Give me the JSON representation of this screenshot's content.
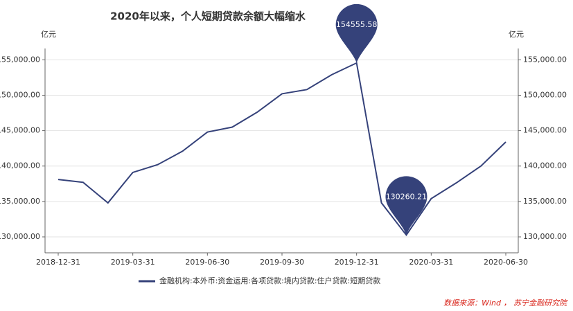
{
  "chart_data": {
    "type": "line",
    "title": "2020年以来，个人短期贷款余额大幅缩水",
    "y_label": "亿元",
    "y2_label": "亿元",
    "source": "数据来源：Wind ， 苏宁金融研究院",
    "categories": [
      "2018-12-31",
      null,
      null,
      "2019-03-31",
      null,
      null,
      "2019-06-30",
      null,
      null,
      "2019-09-30",
      null,
      null,
      "2019-12-31",
      null,
      null,
      "2020-03-31",
      null,
      null,
      "2020-06-30"
    ],
    "series": [
      {
        "name": "金融机构:本外币:资金运用:各项贷款:境内贷款:住户贷款:短期贷款",
        "color": "#35427a",
        "values": [
          138100,
          137700,
          134800,
          139100,
          140200,
          142100,
          144800,
          145500,
          147600,
          150200,
          150800,
          152900,
          154555.58,
          134800,
          130260.21,
          135400,
          137600,
          140000,
          143400
        ]
      }
    ],
    "ylim": [
      127750,
      156600
    ],
    "yticks": [
      {
        "value": 130000,
        "label": "130,000.00"
      },
      {
        "value": 135000,
        "label": "135,000.00"
      },
      {
        "value": 140000,
        "label": "140,000.00"
      },
      {
        "value": 145000,
        "label": "145,000.00"
      },
      {
        "value": 150000,
        "label": "150,000.00"
      },
      {
        "value": 155000,
        "label": "155,000.00"
      }
    ],
    "y2lim": [
      127750,
      156600
    ],
    "y2ticks": [
      {
        "value": 130000,
        "label": "130,000.00"
      },
      {
        "value": 135000,
        "label": "135,000.00"
      },
      {
        "value": 140000,
        "label": "140,000.00"
      },
      {
        "value": 145000,
        "label": "145,000.00"
      },
      {
        "value": 150000,
        "label": "150,000.00"
      },
      {
        "value": 155000,
        "label": "155,000.00"
      }
    ],
    "grid": true,
    "mark_extremes": true,
    "legend": "bottom"
  }
}
